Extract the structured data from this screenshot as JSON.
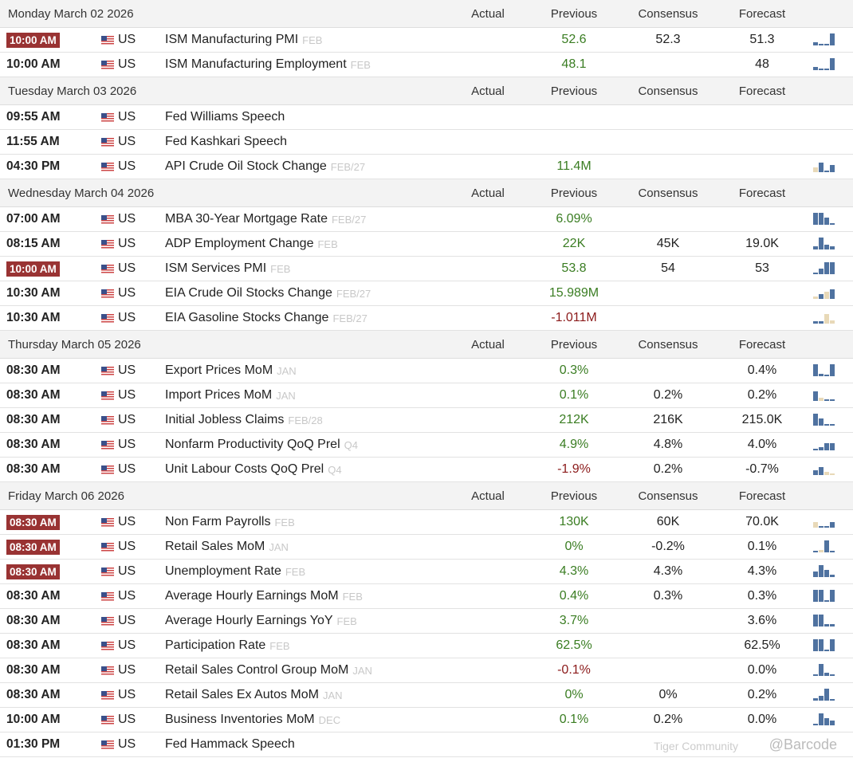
{
  "columns": {
    "actual": "Actual",
    "previous": "Previous",
    "consensus": "Consensus",
    "forecast": "Forecast"
  },
  "days": [
    {
      "date": "Monday March 02 2026",
      "events": [
        {
          "time": "10:00 AM",
          "hi": true,
          "country": "US",
          "name": "ISM Manufacturing PMI",
          "period": "FEB",
          "previous": "52.6",
          "prev_trend": "pos",
          "consensus": "52.3",
          "forecast": "51.3",
          "spark": [
            0.3,
            0.15,
            0.15,
            1
          ]
        },
        {
          "time": "10:00 AM",
          "hi": false,
          "country": "US",
          "name": "ISM Manufacturing Employment",
          "period": "FEB",
          "previous": "48.1",
          "prev_trend": "pos",
          "consensus": "",
          "forecast": "48",
          "spark": [
            0.3,
            0.1,
            0.1,
            1
          ]
        }
      ]
    },
    {
      "date": "Tuesday March 03 2026",
      "events": [
        {
          "time": "09:55 AM",
          "hi": false,
          "country": "US",
          "name": "Fed Williams Speech",
          "period": "",
          "previous": "",
          "prev_trend": "",
          "consensus": "",
          "forecast": "",
          "spark": []
        },
        {
          "time": "11:55 AM",
          "hi": false,
          "country": "US",
          "name": "Fed Kashkari Speech",
          "period": "",
          "previous": "",
          "prev_trend": "",
          "consensus": "",
          "forecast": "",
          "spark": []
        },
        {
          "time": "04:30 PM",
          "hi": false,
          "country": "US",
          "name": "API Crude Oil Stock Change",
          "period": "FEB/27",
          "previous": "11.4M",
          "prev_trend": "pos",
          "consensus": "",
          "forecast": "",
          "spark": [
            -0.4,
            0.8,
            0.1,
            0.6
          ]
        }
      ]
    },
    {
      "date": "Wednesday March 04 2026",
      "events": [
        {
          "time": "07:00 AM",
          "hi": false,
          "country": "US",
          "name": "MBA 30-Year Mortgage Rate",
          "period": "FEB/27",
          "previous": "6.09%",
          "prev_trend": "pos",
          "consensus": "",
          "forecast": "",
          "spark": [
            1,
            1,
            0.6,
            0.1
          ]
        },
        {
          "time": "08:15 AM",
          "hi": false,
          "country": "US",
          "name": "ADP Employment Change",
          "period": "FEB",
          "previous": "22K",
          "prev_trend": "pos",
          "consensus": "45K",
          "forecast": "19.0K",
          "spark": [
            0.3,
            1,
            0.4,
            0.3
          ]
        },
        {
          "time": "10:00 AM",
          "hi": true,
          "country": "US",
          "name": "ISM Services PMI",
          "period": "FEB",
          "previous": "53.8",
          "prev_trend": "pos",
          "consensus": "54",
          "forecast": "53",
          "spark": [
            0.1,
            0.5,
            1,
            1
          ]
        },
        {
          "time": "10:30 AM",
          "hi": false,
          "country": "US",
          "name": "EIA Crude Oil Stocks Change",
          "period": "FEB/27",
          "previous": "15.989M",
          "prev_trend": "pos",
          "consensus": "",
          "forecast": "",
          "spark": [
            -0.2,
            0.4,
            -0.6,
            0.8
          ]
        },
        {
          "time": "10:30 AM",
          "hi": false,
          "country": "US",
          "name": "EIA Gasoline Stocks Change",
          "period": "FEB/27",
          "previous": "-1.011M",
          "prev_trend": "neg",
          "consensus": "",
          "forecast": "",
          "spark": [
            0.2,
            0.2,
            -0.8,
            -0.3
          ]
        }
      ]
    },
    {
      "date": "Thursday March 05 2026",
      "events": [
        {
          "time": "08:30 AM",
          "hi": false,
          "country": "US",
          "name": "Export Prices MoM",
          "period": "JAN",
          "previous": "0.3%",
          "prev_trend": "pos",
          "consensus": "",
          "forecast": "0.4%",
          "spark": [
            1,
            0.2,
            0,
            1
          ]
        },
        {
          "time": "08:30 AM",
          "hi": false,
          "country": "US",
          "name": "Import Prices MoM",
          "period": "JAN",
          "previous": "0.1%",
          "prev_trend": "pos",
          "consensus": "0.2%",
          "forecast": "0.2%",
          "spark": [
            0.8,
            -0.3,
            0,
            0.15
          ]
        },
        {
          "time": "08:30 AM",
          "hi": false,
          "country": "US",
          "name": "Initial Jobless Claims",
          "period": "FEB/28",
          "previous": "212K",
          "prev_trend": "pos",
          "consensus": "216K",
          "forecast": "215.0K",
          "spark": [
            1,
            0.6,
            0.15,
            0.1
          ]
        },
        {
          "time": "08:30 AM",
          "hi": false,
          "country": "US",
          "name": "Nonfarm Productivity QoQ Prel",
          "period": "Q4",
          "previous": "4.9%",
          "prev_trend": "pos",
          "consensus": "4.8%",
          "forecast": "4.0%",
          "spark": [
            0.1,
            0.3,
            0.6,
            0.6
          ]
        },
        {
          "time": "08:30 AM",
          "hi": false,
          "country": "US",
          "name": "Unit Labour Costs QoQ Prel",
          "period": "Q4",
          "previous": "-1.9%",
          "prev_trend": "neg",
          "consensus": "0.2%",
          "forecast": "-0.7%",
          "spark": [
            0.4,
            0.7,
            -0.3,
            -0.1
          ]
        }
      ]
    },
    {
      "date": "Friday March 06 2026",
      "events": [
        {
          "time": "08:30 AM",
          "hi": true,
          "country": "US",
          "name": "Non Farm Payrolls",
          "period": "FEB",
          "previous": "130K",
          "prev_trend": "pos",
          "consensus": "60K",
          "forecast": "70.0K",
          "spark": [
            -0.5,
            0.15,
            0.15,
            0.5
          ]
        },
        {
          "time": "08:30 AM",
          "hi": true,
          "country": "US",
          "name": "Retail Sales MoM",
          "period": "JAN",
          "previous": "0%",
          "prev_trend": "pos",
          "consensus": "-0.2%",
          "forecast": "0.1%",
          "spark": [
            0.05,
            -0.2,
            1,
            0
          ]
        },
        {
          "time": "08:30 AM",
          "hi": true,
          "country": "US",
          "name": "Unemployment Rate",
          "period": "FEB",
          "previous": "4.3%",
          "prev_trend": "pos",
          "consensus": "4.3%",
          "forecast": "4.3%",
          "spark": [
            0.5,
            1,
            0.6,
            0.2
          ]
        },
        {
          "time": "08:30 AM",
          "hi": false,
          "country": "US",
          "name": "Average Hourly Earnings MoM",
          "period": "FEB",
          "previous": "0.4%",
          "prev_trend": "pos",
          "consensus": "0.3%",
          "forecast": "0.3%",
          "spark": [
            1,
            1,
            0.1,
            1
          ]
        },
        {
          "time": "08:30 AM",
          "hi": false,
          "country": "US",
          "name": "Average Hourly Earnings YoY",
          "period": "FEB",
          "previous": "3.7%",
          "prev_trend": "pos",
          "consensus": "",
          "forecast": "3.6%",
          "spark": [
            1,
            1,
            0.2,
            0.2
          ]
        },
        {
          "time": "08:30 AM",
          "hi": false,
          "country": "US",
          "name": "Participation Rate",
          "period": "FEB",
          "previous": "62.5%",
          "prev_trend": "pos",
          "consensus": "",
          "forecast": "62.5%",
          "spark": [
            1,
            1,
            0.1,
            1
          ]
        },
        {
          "time": "08:30 AM",
          "hi": false,
          "country": "US",
          "name": "Retail Sales Control Group MoM",
          "period": "JAN",
          "previous": "-0.1%",
          "prev_trend": "neg",
          "consensus": "",
          "forecast": "0.0%",
          "spark": [
            0,
            1,
            0.3,
            0
          ]
        },
        {
          "time": "08:30 AM",
          "hi": false,
          "country": "US",
          "name": "Retail Sales Ex Autos MoM",
          "period": "JAN",
          "previous": "0%",
          "prev_trend": "pos",
          "consensus": "0%",
          "forecast": "0.2%",
          "spark": [
            0.2,
            0.4,
            1,
            0
          ]
        },
        {
          "time": "10:00 AM",
          "hi": false,
          "country": "US",
          "name": "Business Inventories MoM",
          "period": "DEC",
          "previous": "0.1%",
          "prev_trend": "pos",
          "consensus": "0.2%",
          "forecast": "0.0%",
          "spark": [
            0,
            1,
            0.6,
            0.4
          ]
        },
        {
          "time": "01:30 PM",
          "hi": false,
          "country": "US",
          "name": "Fed Hammack Speech",
          "period": "",
          "previous": "",
          "prev_trend": "",
          "consensus": "",
          "forecast": "",
          "spark": []
        }
      ]
    }
  ],
  "watermark": {
    "brand": "Tiger Community",
    "handle": "@Barcode"
  }
}
